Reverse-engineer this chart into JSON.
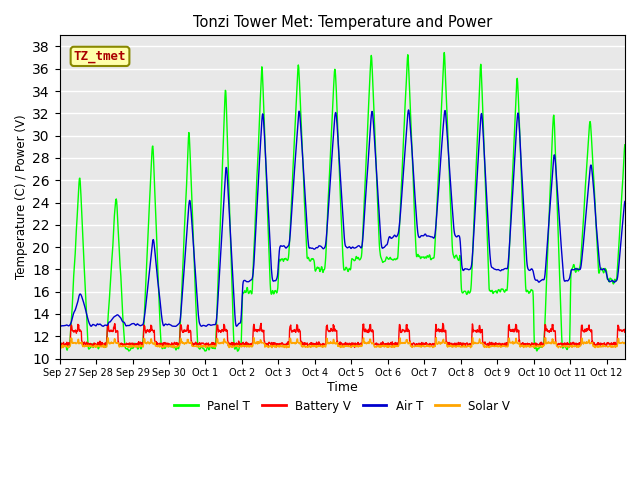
{
  "title": "Tonzi Tower Met: Temperature and Power",
  "xlabel": "Time",
  "ylabel": "Temperature (C) / Power (V)",
  "ylim": [
    10,
    39
  ],
  "yticks": [
    10,
    12,
    14,
    16,
    18,
    20,
    22,
    24,
    26,
    28,
    30,
    32,
    34,
    36,
    38
  ],
  "bg_color": "#e8e8e8",
  "grid_color": "#ffffff",
  "line_colors": {
    "panel": "#00ff00",
    "battery": "#ff0000",
    "air": "#0000cd",
    "solar": "#ffa500"
  },
  "legend_labels": [
    "Panel T",
    "Battery V",
    "Air T",
    "Solar V"
  ],
  "tz_label": "TZ_tmet",
  "xtick_labels": [
    "Sep 27",
    "Sep 28",
    "Sep 29",
    "Sep 30",
    "Oct 1",
    "Oct 2",
    "Oct 3",
    "Oct 4",
    "Oct 5",
    "Oct 6",
    "Oct 7",
    "Oct 8",
    "Oct 9",
    "Oct 10",
    "Oct 11",
    "Oct 12"
  ]
}
